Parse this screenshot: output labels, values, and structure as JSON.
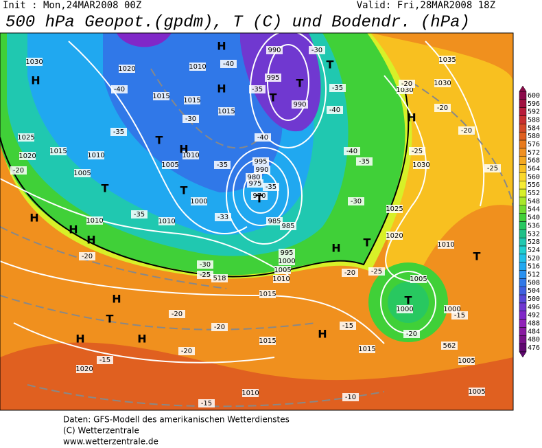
{
  "header": {
    "init": "Init : Mon,24MAR2008 00Z",
    "valid": "Valid: Fri,28MAR2008 18Z",
    "title": "500 hPa Geopot.(gpdm), T (C) und Bodendr. (hPa)"
  },
  "map": {
    "labels": [
      "1030",
      "1020",
      "1010",
      "1015",
      "1015",
      "1015",
      "1025",
      "1015",
      "1020",
      "1010",
      "1010",
      "1005",
      "1005",
      "1000",
      "1010",
      "1010",
      "990",
      "995",
      "990",
      "995",
      "990",
      "980",
      "975",
      "970",
      "985",
      "985",
      "995",
      "1000",
      "1005",
      "1010",
      "1015",
      "1015",
      "1015",
      "1020",
      "1035",
      "1030",
      "1030",
      "1030",
      "1025",
      "1020",
      "1010",
      "1005",
      "1000",
      "1000",
      "1005",
      "1005",
      "1010",
      "-30",
      "-35",
      "-40",
      "-40",
      "-35",
      "-35",
      "-33",
      "-30",
      "-25",
      "-20",
      "-20",
      "-40",
      "-35",
      "-35",
      "-30",
      "-35",
      "-40",
      "-40",
      "-35",
      "-30",
      "-25",
      "-20",
      "-20",
      "-20",
      "-20",
      "-15",
      "-15",
      "-15",
      "-10",
      "-20",
      "-20",
      "-20",
      "-25",
      "-25",
      "-20",
      "-15",
      "562",
      "518",
      "H",
      "H",
      "H",
      "H",
      "H",
      "H",
      "H",
      "H",
      "H",
      "H",
      "H",
      "H",
      "H",
      "T",
      "T",
      "T",
      "T",
      "T",
      "T",
      "T",
      "T",
      "T",
      "T",
      "T"
    ]
  },
  "legend": {
    "levels": [
      600,
      596,
      592,
      588,
      584,
      580,
      576,
      572,
      568,
      564,
      560,
      556,
      552,
      548,
      544,
      540,
      536,
      532,
      528,
      524,
      520,
      516,
      512,
      508,
      504,
      500,
      496,
      492,
      488,
      484,
      480,
      476
    ],
    "colors": [
      "#8b0a4a",
      "#a01040",
      "#b81c3a",
      "#c83030",
      "#d44a28",
      "#e06020",
      "#e87a1c",
      "#f09020",
      "#f4a820",
      "#f8c020",
      "#fad82c",
      "#f6ec34",
      "#d8f028",
      "#a8e82a",
      "#70dc30",
      "#40d038",
      "#28c860",
      "#20c088",
      "#20c8b0",
      "#20d0d0",
      "#20c0e8",
      "#20a8f0",
      "#2890f0",
      "#3078e8",
      "#4060e0",
      "#5848d8",
      "#7038d0",
      "#8028c8",
      "#9020b8",
      "#8818a0",
      "#781088",
      "#600870"
    ]
  },
  "footer": {
    "lines": [
      "Daten: GFS-Modell des amerikanischen Wetterdienstes",
      "(C) Wetterzentrale",
      "www.wetterzentrale.de"
    ]
  }
}
